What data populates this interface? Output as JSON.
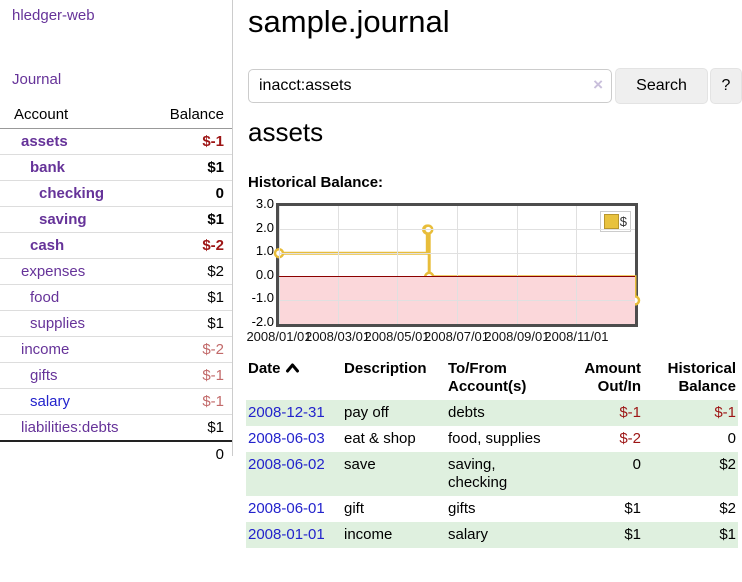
{
  "app": {
    "title": "hledger-web"
  },
  "sidebar": {
    "journal_link": "Journal",
    "accounts": {
      "header": {
        "account": "Account",
        "balance": "Balance"
      },
      "rows": [
        {
          "name": "assets",
          "balance": "$-1",
          "depth": 0,
          "name_cls": "bold",
          "bal_cls": "bold neg"
        },
        {
          "name": "bank",
          "balance": "$1",
          "depth": 1,
          "name_cls": "bold",
          "bal_cls": "bold"
        },
        {
          "name": "checking",
          "balance": "0",
          "depth": 2,
          "name_cls": "bold",
          "bal_cls": "bold"
        },
        {
          "name": "saving",
          "balance": "$1",
          "depth": 2,
          "name_cls": "bold",
          "bal_cls": "bold"
        },
        {
          "name": "cash",
          "balance": "$-2",
          "depth": 1,
          "name_cls": "bold",
          "bal_cls": "bold neg"
        },
        {
          "name": "expenses",
          "balance": "$2",
          "depth": 0,
          "name_cls": "",
          "bal_cls": ""
        },
        {
          "name": "food",
          "balance": "$1",
          "depth": 1,
          "name_cls": "",
          "bal_cls": ""
        },
        {
          "name": "supplies",
          "balance": "$1",
          "depth": 1,
          "name_cls": "",
          "bal_cls": ""
        },
        {
          "name": "income",
          "balance": "$-2",
          "depth": 0,
          "name_cls": "",
          "bal_cls": "mutedneg"
        },
        {
          "name": "gifts",
          "balance": "$-1",
          "depth": 1,
          "name_cls": "",
          "bal_cls": "mutedneg"
        },
        {
          "name": "salary",
          "balance": "$-1",
          "depth": 1,
          "name_cls": "blue",
          "bal_cls": "mutedneg"
        },
        {
          "name": "liabilities:debts",
          "balance": "$1",
          "depth": 0,
          "name_cls": "",
          "bal_cls": ""
        }
      ],
      "total": "0"
    }
  },
  "main": {
    "title": "sample.journal",
    "search": {
      "query": "inacct:assets",
      "clear_icon": "×",
      "search_button": "Search",
      "help_button": "?"
    },
    "account_heading": "assets",
    "chart_title": "Historical Balance:"
  },
  "chart_data": {
    "type": "line",
    "title": "Historical Balance",
    "x_range": [
      "2008-01-01",
      "2008-12-31"
    ],
    "ylim": [
      -2.0,
      3.0
    ],
    "y_ticks": [
      3.0,
      2.0,
      1.0,
      0.0,
      -1.0,
      -2.0
    ],
    "x_ticks": [
      "2008/01/01",
      "2008/03/01",
      "2008/05/01",
      "2008/07/01",
      "2008/09/01",
      "2008/11/01"
    ],
    "series": [
      {
        "name": "$",
        "color": "#e8bd3a",
        "interpolation": "step-after",
        "points": [
          [
            "2008-01-01",
            1.0
          ],
          [
            "2008-06-01",
            2.0
          ],
          [
            "2008-06-02",
            2.0
          ],
          [
            "2008-06-03",
            0.0
          ],
          [
            "2008-12-31",
            -1.0
          ]
        ]
      }
    ],
    "legend": {
      "position": "top-right",
      "entries": [
        {
          "label": "$",
          "color": "#e8c23e"
        }
      ]
    },
    "grid": true,
    "negative_region_color": "#fbd7da",
    "zero_line_color": "#8b0000"
  },
  "register": {
    "headers": {
      "date": "Date",
      "sort_icon": "chevron-up",
      "description": "Description",
      "account_line1": "To/From",
      "account_line2": "Account(s)",
      "amount_line1": "Amount",
      "amount_line2": "Out/In",
      "balance_line1": "Historical",
      "balance_line2": "Balance"
    },
    "rows": [
      {
        "date": "2008-12-31",
        "description": "pay off",
        "accounts": "debts",
        "amount": "$-1",
        "balance": "$-1",
        "amount_cls": "neg",
        "balance_cls": "neg"
      },
      {
        "date": "2008-06-03",
        "description": "eat & shop",
        "accounts": "food, supplies",
        "amount": "$-2",
        "balance": "0",
        "amount_cls": "neg",
        "balance_cls": ""
      },
      {
        "date": "2008-06-02",
        "description": "save",
        "accounts": "saving, checking",
        "amount": "0",
        "balance": "$2",
        "amount_cls": "",
        "balance_cls": ""
      },
      {
        "date": "2008-06-01",
        "description": "gift",
        "accounts": "gifts",
        "amount": "$1",
        "balance": "$2",
        "amount_cls": "",
        "balance_cls": ""
      },
      {
        "date": "2008-01-01",
        "description": "income",
        "accounts": "salary",
        "amount": "$1",
        "balance": "$1",
        "amount_cls": "",
        "balance_cls": ""
      }
    ]
  },
  "colors": {
    "accent_purple": "#663399",
    "link_blue": "#2323cc",
    "negative_red": "#9d1515",
    "muted_negative": "#c26a6a",
    "row_stripe_green": "#dff0df",
    "series_gold": "#e8bd3a"
  }
}
